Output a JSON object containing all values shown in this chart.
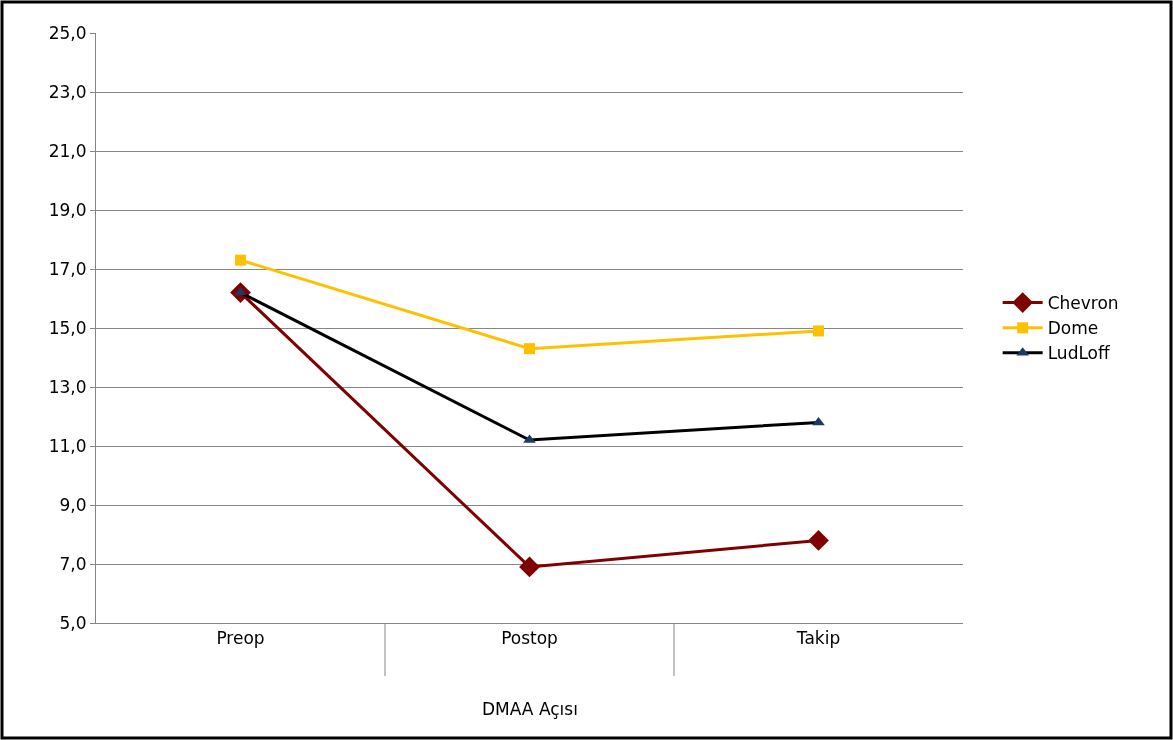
{
  "chart_data": {
    "type": "line",
    "xlabel": "DMAA Açısı",
    "categories": [
      "Preop",
      "Postop",
      "Takip"
    ],
    "series": [
      {
        "name": "Chevron",
        "color": "#7f0000",
        "values": [
          16.2,
          6.9,
          7.8
        ],
        "marker": "diamond"
      },
      {
        "name": "Dome",
        "color": "#ffc000",
        "values": [
          17.3,
          14.3,
          14.9
        ],
        "marker": "square"
      },
      {
        "name": "LudLoff",
        "color": "#000000",
        "values": [
          16.2,
          11.2,
          11.8
        ],
        "marker": "triangle"
      }
    ],
    "ylim": [
      5,
      25
    ],
    "yticks": [
      {
        "value": 5,
        "label": "5,0"
      },
      {
        "value": 7,
        "label": "7,0"
      },
      {
        "value": 9,
        "label": "9,0"
      },
      {
        "value": 11,
        "label": "11,0"
      },
      {
        "value": 13,
        "label": "13,0"
      },
      {
        "value": 15,
        "label": "15,0"
      },
      {
        "value": 17,
        "label": "17,0"
      },
      {
        "value": 19,
        "label": "19,0"
      },
      {
        "value": 21,
        "label": "21,0"
      },
      {
        "value": 23,
        "label": "23,0"
      },
      {
        "value": 25,
        "label": "25,0"
      }
    ],
    "grid": "y",
    "legend": "right",
    "line_style": "solid"
  }
}
